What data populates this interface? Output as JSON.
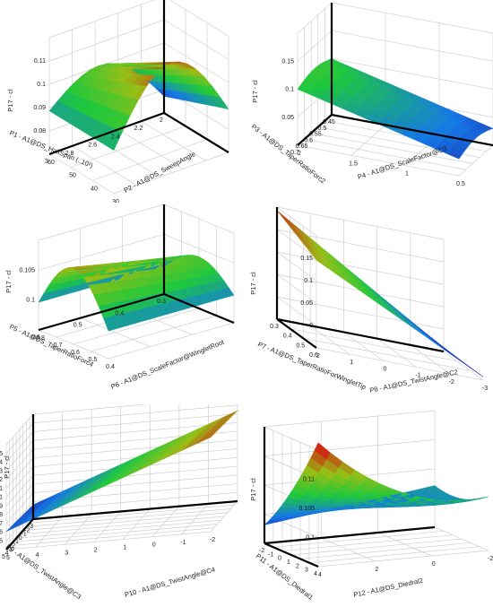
{
  "chart_data": [
    {
      "type": "surface3d",
      "zlabel": "P17 - cl",
      "xlabel": "P1 - A1@DS_HalfSpan (..10¹)",
      "ylabel": "P2 - A1@DS_SweepAngle",
      "zticks": [
        "0.11",
        "0.1",
        "0.09",
        "0.08"
      ],
      "xticks": [
        "2",
        "2.2",
        "2.4",
        "2.6",
        "2.8",
        "3"
      ],
      "yticks": [
        "60",
        "50",
        "40",
        "30"
      ],
      "zlim": [
        0.075,
        0.11
      ]
    },
    {
      "type": "surface3d",
      "zlabel": "P17 - cl",
      "xlabel": "P3 - A1@DS_TaperRatioForc2",
      "ylabel": "P4 - A1@DS_ScaleFactor@C3",
      "zticks": [
        "0.15",
        "0.1",
        "0.05"
      ],
      "xticks": [
        "0.45",
        "0.5",
        "0.55",
        "0.6",
        "0.65",
        "0.7"
      ],
      "yticks": [
        "2",
        "1.5",
        "1",
        "0.5"
      ],
      "zlim": [
        0.05,
        0.15
      ]
    },
    {
      "type": "surface3d",
      "zlabel": "P17 - cl",
      "xlabel": "P5 - A1@DS_TaperRatioForc4",
      "ylabel": "P6 - A1@DS_ScaleFactor@WingletRoot",
      "zticks": [
        "0.105",
        "0.1"
      ],
      "xticks": [
        "0.3",
        "0.4",
        "0.5",
        "0.6"
      ],
      "yticks": [
        "0.8",
        "0.7",
        "0.6",
        "0.5",
        "0.4"
      ],
      "zlim": [
        0.095,
        0.108
      ]
    },
    {
      "type": "surface3d",
      "zlabel": "P17 - cl",
      "xlabel": "P7 - A1@DS_TaperRatioForWingletTip",
      "ylabel": "P8 - A1@DS_TwistAngle@C2",
      "zticks": [
        "0.15",
        "0.1",
        "0.05",
        "0"
      ],
      "xticks": [
        "0.3",
        "0.4",
        "0.5",
        "0.6"
      ],
      "yticks": [
        "2",
        "1",
        "0",
        "-1",
        "-2",
        "-3"
      ],
      "zlim": [
        0,
        0.17
      ]
    },
    {
      "type": "surface3d",
      "zlabel": "P17 - cl",
      "xlabel": "P9 - A1@DS_TwistAngle@C3",
      "ylabel": "P10 - A1@DS_TwistAngle@C4",
      "zticks": [
        "0.15",
        "0.14",
        "0.13",
        "0.12",
        "0.11",
        "0.1",
        "0.09",
        "0.08",
        "0.07",
        "0.06",
        "0.05"
      ],
      "xticks": [
        "-3",
        "-2",
        "-1",
        "0",
        "1",
        "2",
        "3",
        "4",
        "5"
      ],
      "yticks": [
        "5",
        "4",
        "3",
        "2",
        "1",
        "0",
        "-1",
        "-2"
      ],
      "zlim": [
        0.045,
        0.155
      ]
    },
    {
      "type": "surface3d",
      "zlabel": "P17 - cl",
      "xlabel": "P11 - A1@DS_Diedral1",
      "ylabel": "P12 - A1@DS_Diedral2",
      "zticks": [
        "0.11",
        "0.105",
        "0.1"
      ],
      "xticks": [
        "-2",
        "-1",
        "0",
        "1",
        "2",
        "3",
        "4"
      ],
      "yticks": [
        "4",
        "2",
        "0",
        "-2"
      ],
      "zlim": [
        0.098,
        0.113
      ]
    }
  ]
}
